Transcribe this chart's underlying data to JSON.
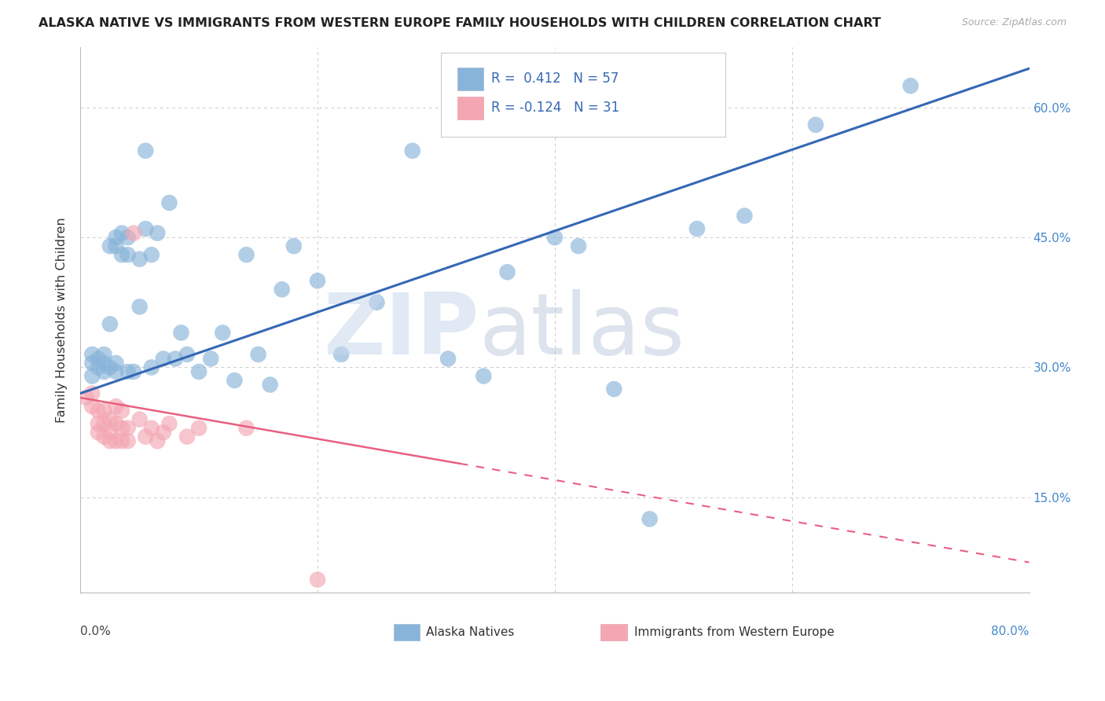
{
  "title": "ALASKA NATIVE VS IMMIGRANTS FROM WESTERN EUROPE FAMILY HOUSEHOLDS WITH CHILDREN CORRELATION CHART",
  "source": "Source: ZipAtlas.com",
  "ylabel": "Family Households with Children",
  "xlim": [
    0.0,
    0.8
  ],
  "ylim": [
    0.04,
    0.67
  ],
  "xticks": [
    0.0,
    0.2,
    0.4,
    0.6,
    0.8
  ],
  "xticklabels": [
    "0.0%",
    "",
    "",
    "",
    "80.0%"
  ],
  "yticks": [
    0.15,
    0.3,
    0.45,
    0.6
  ],
  "yticklabels": [
    "15.0%",
    "30.0%",
    "45.0%",
    "60.0%"
  ],
  "legend_labels": [
    "Alaska Natives",
    "Immigrants from Western Europe"
  ],
  "R_blue": 0.412,
  "N_blue": 57,
  "R_pink": -0.124,
  "N_pink": 31,
  "blue_color": "#89B4D9",
  "pink_color": "#F4A7B2",
  "line_blue": "#3567B5",
  "line_pink": "#E86080",
  "blue_x": [
    0.01,
    0.01,
    0.01,
    0.015,
    0.015,
    0.02,
    0.02,
    0.02,
    0.025,
    0.025,
    0.025,
    0.03,
    0.03,
    0.03,
    0.03,
    0.035,
    0.035,
    0.04,
    0.04,
    0.04,
    0.045,
    0.05,
    0.05,
    0.055,
    0.055,
    0.06,
    0.06,
    0.065,
    0.07,
    0.075,
    0.08,
    0.085,
    0.09,
    0.1,
    0.11,
    0.12,
    0.13,
    0.14,
    0.15,
    0.16,
    0.17,
    0.18,
    0.2,
    0.22,
    0.25,
    0.28,
    0.31,
    0.34,
    0.36,
    0.4,
    0.42,
    0.45,
    0.48,
    0.52,
    0.56,
    0.62,
    0.7
  ],
  "blue_y": [
    0.29,
    0.305,
    0.315,
    0.3,
    0.31,
    0.295,
    0.305,
    0.315,
    0.3,
    0.35,
    0.44,
    0.295,
    0.305,
    0.44,
    0.45,
    0.43,
    0.455,
    0.295,
    0.43,
    0.45,
    0.295,
    0.37,
    0.425,
    0.46,
    0.55,
    0.3,
    0.43,
    0.455,
    0.31,
    0.49,
    0.31,
    0.34,
    0.315,
    0.295,
    0.31,
    0.34,
    0.285,
    0.43,
    0.315,
    0.28,
    0.39,
    0.44,
    0.4,
    0.315,
    0.375,
    0.55,
    0.31,
    0.29,
    0.41,
    0.45,
    0.44,
    0.275,
    0.125,
    0.46,
    0.475,
    0.58,
    0.625
  ],
  "pink_x": [
    0.005,
    0.01,
    0.01,
    0.015,
    0.015,
    0.015,
    0.02,
    0.02,
    0.02,
    0.025,
    0.025,
    0.025,
    0.03,
    0.03,
    0.03,
    0.035,
    0.035,
    0.035,
    0.04,
    0.04,
    0.045,
    0.05,
    0.055,
    0.06,
    0.065,
    0.07,
    0.075,
    0.09,
    0.1,
    0.14,
    0.2
  ],
  "pink_y": [
    0.265,
    0.255,
    0.27,
    0.225,
    0.235,
    0.25,
    0.22,
    0.235,
    0.25,
    0.215,
    0.225,
    0.24,
    0.215,
    0.235,
    0.255,
    0.215,
    0.23,
    0.25,
    0.215,
    0.23,
    0.455,
    0.24,
    0.22,
    0.23,
    0.215,
    0.225,
    0.235,
    0.22,
    0.23,
    0.23,
    0.055
  ],
  "blue_line_x0": 0.0,
  "blue_line_y0": 0.27,
  "blue_line_x1": 0.8,
  "blue_line_y1": 0.645,
  "pink_line_x0": 0.0,
  "pink_line_y0": 0.265,
  "pink_line_x1": 0.8,
  "pink_line_y1": 0.075
}
